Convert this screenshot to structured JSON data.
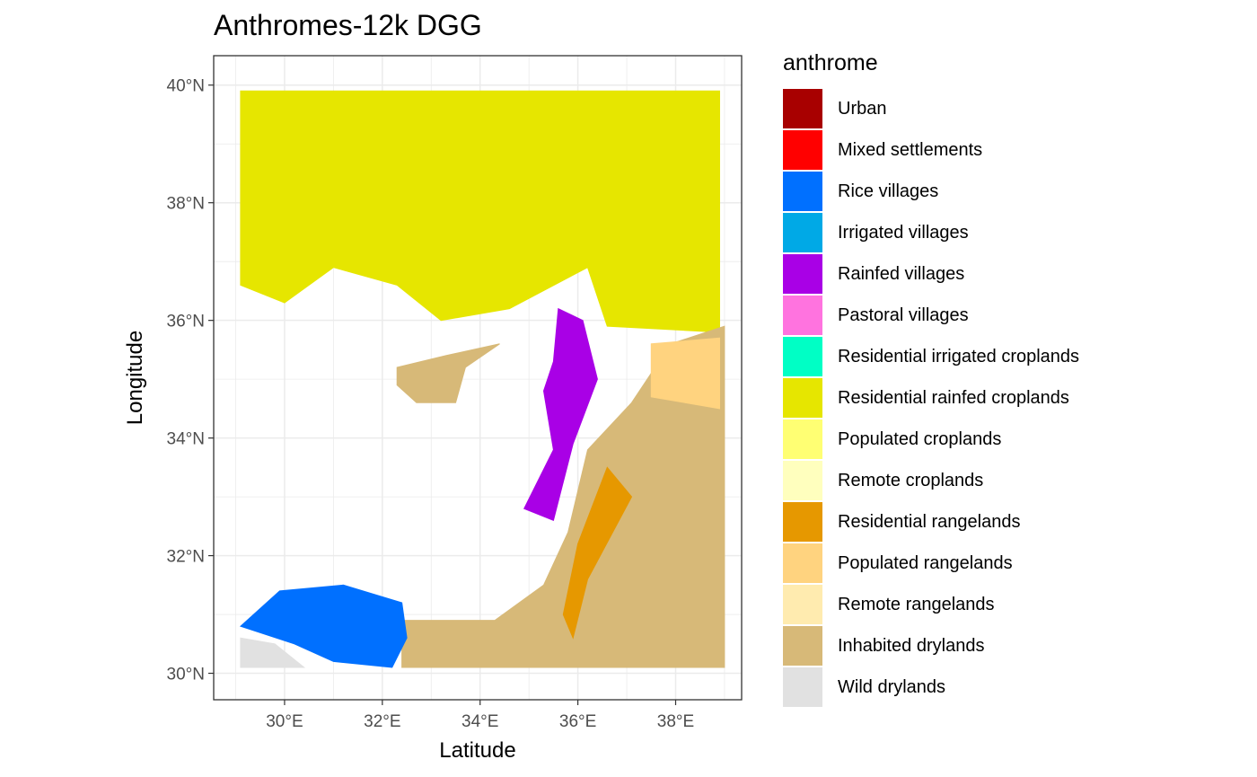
{
  "title": "Anthromes-12k DGG",
  "x_axis": {
    "title": "Latitude",
    "ticks": [
      "30°E",
      "32°E",
      "34°E",
      "36°E",
      "38°E"
    ],
    "tick_values": [
      30,
      32,
      34,
      36,
      38
    ],
    "range": [
      28.55,
      39.35
    ]
  },
  "y_axis": {
    "title": "Longitude",
    "ticks": [
      "30°N",
      "32°N",
      "34°N",
      "36°N",
      "38°N",
      "40°N"
    ],
    "tick_values": [
      30,
      32,
      34,
      36,
      38,
      40
    ],
    "range": [
      29.55,
      40.5
    ]
  },
  "legend": {
    "title": "anthrome",
    "items": [
      {
        "label": "Urban",
        "color": "#A80000"
      },
      {
        "label": "Mixed settlements",
        "color": "#FF0000"
      },
      {
        "label": "Rice villages",
        "color": "#0070FF"
      },
      {
        "label": "Irrigated villages",
        "color": "#00A9E6"
      },
      {
        "label": "Rainfed villages",
        "color": "#A900E6"
      },
      {
        "label": "Pastoral villages",
        "color": "#FF73DF"
      },
      {
        "label": "Residential irrigated croplands",
        "color": "#00FFC5"
      },
      {
        "label": "Residential rainfed croplands",
        "color": "#E6E600"
      },
      {
        "label": "Populated croplands",
        "color": "#FFFF73"
      },
      {
        "label": "Remote croplands",
        "color": "#FFFFBE"
      },
      {
        "label": "Residential rangelands",
        "color": "#E69800"
      },
      {
        "label": "Populated rangelands",
        "color": "#FFD37F"
      },
      {
        "label": "Remote rangelands",
        "color": "#FFEBAF"
      },
      {
        "label": "Inhabited drylands",
        "color": "#D7B978"
      },
      {
        "label": "Wild drylands",
        "color": "#E1E1E1"
      }
    ]
  },
  "map_regions": [
    {
      "anthrome": "Residential rainfed croplands",
      "polygon": [
        [
          29.1,
          39.9
        ],
        [
          38.9,
          39.9
        ],
        [
          38.9,
          35.8
        ],
        [
          36.6,
          35.9
        ],
        [
          36.2,
          36.9
        ],
        [
          34.6,
          36.2
        ],
        [
          33.2,
          36.0
        ],
        [
          32.3,
          36.6
        ],
        [
          31.0,
          36.9
        ],
        [
          30.0,
          36.3
        ],
        [
          29.1,
          36.6
        ]
      ]
    },
    {
      "anthrome": "Inhabited drylands",
      "polygon": [
        [
          39.0,
          35.9
        ],
        [
          39.0,
          30.1
        ],
        [
          32.4,
          30.1
        ],
        [
          32.4,
          30.9
        ],
        [
          34.3,
          30.9
        ],
        [
          35.3,
          31.5
        ],
        [
          35.8,
          32.4
        ],
        [
          36.2,
          33.8
        ],
        [
          37.1,
          34.6
        ],
        [
          37.9,
          35.6
        ]
      ]
    },
    {
      "anthrome": "Inhabited drylands",
      "polygon": [
        [
          32.3,
          35.2
        ],
        [
          33.3,
          35.4
        ],
        [
          34.4,
          35.6
        ],
        [
          33.7,
          35.2
        ],
        [
          33.5,
          34.6
        ],
        [
          32.7,
          34.6
        ],
        [
          32.3,
          34.9
        ]
      ]
    },
    {
      "anthrome": "Populated rangelands",
      "polygon": [
        [
          37.5,
          35.6
        ],
        [
          38.9,
          35.7
        ],
        [
          38.9,
          34.5
        ],
        [
          37.5,
          34.7
        ]
      ]
    },
    {
      "anthrome": "Rainfed villages",
      "polygon": [
        [
          35.3,
          34.8
        ],
        [
          35.5,
          33.8
        ],
        [
          34.9,
          32.8
        ],
        [
          35.5,
          32.6
        ],
        [
          35.9,
          33.9
        ],
        [
          36.4,
          35.0
        ],
        [
          36.1,
          36.0
        ],
        [
          35.6,
          36.2
        ],
        [
          35.5,
          35.3
        ]
      ]
    },
    {
      "anthrome": "Rice villages",
      "polygon": [
        [
          29.1,
          30.8
        ],
        [
          29.9,
          31.4
        ],
        [
          31.2,
          31.5
        ],
        [
          32.4,
          31.2
        ],
        [
          32.5,
          30.6
        ],
        [
          32.2,
          30.1
        ],
        [
          31.0,
          30.2
        ],
        [
          30.2,
          30.5
        ]
      ]
    },
    {
      "anthrome": "Wild drylands",
      "polygon": [
        [
          29.1,
          30.6
        ],
        [
          29.8,
          30.5
        ],
        [
          30.4,
          30.1
        ],
        [
          29.1,
          30.1
        ]
      ]
    },
    {
      "anthrome": "Residential rangelands",
      "polygon": [
        [
          35.7,
          31.0
        ],
        [
          36.0,
          32.2
        ],
        [
          36.6,
          33.5
        ],
        [
          37.1,
          33.0
        ],
        [
          36.2,
          31.6
        ],
        [
          35.9,
          30.6
        ]
      ]
    }
  ]
}
